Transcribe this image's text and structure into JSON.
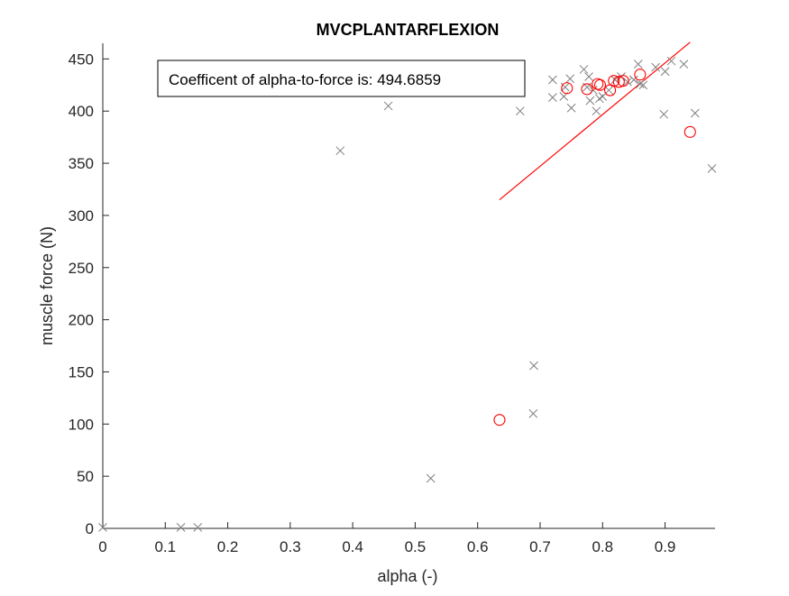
{
  "chart_data": {
    "type": "scatter",
    "title": "MVCPLANTARFLEXION",
    "xlabel": "alpha (-)",
    "ylabel": "muscle force (N)",
    "xlim": [
      0,
      0.98
    ],
    "ylim": [
      0,
      465
    ],
    "xticks": [
      0,
      0.1,
      0.2,
      0.3,
      0.4,
      0.5,
      0.6,
      0.7,
      0.8,
      0.9
    ],
    "yticks": [
      0,
      50,
      100,
      150,
      200,
      250,
      300,
      350,
      400,
      450
    ],
    "grid": false,
    "annotation": "Coefficent of alpha-to-force is: 494.6859",
    "series": [
      {
        "marker": "x",
        "color": "#7f7f7f",
        "points": [
          [
            0.0,
            1
          ],
          [
            0.125,
            1
          ],
          [
            0.152,
            1
          ],
          [
            0.38,
            362
          ],
          [
            0.457,
            405
          ],
          [
            0.525,
            48
          ],
          [
            0.668,
            400
          ],
          [
            0.689,
            110
          ],
          [
            0.69,
            156
          ],
          [
            0.72,
            413
          ],
          [
            0.72,
            430
          ],
          [
            0.738,
            414
          ],
          [
            0.74,
            423
          ],
          [
            0.748,
            431
          ],
          [
            0.75,
            403
          ],
          [
            0.77,
            440
          ],
          [
            0.775,
            423
          ],
          [
            0.778,
            433
          ],
          [
            0.78,
            410
          ],
          [
            0.785,
            420
          ],
          [
            0.79,
            400
          ],
          [
            0.795,
            412
          ],
          [
            0.8,
            414
          ],
          [
            0.81,
            420
          ],
          [
            0.82,
            430
          ],
          [
            0.83,
            433
          ],
          [
            0.84,
            428
          ],
          [
            0.85,
            430
          ],
          [
            0.857,
            445
          ],
          [
            0.86,
            426
          ],
          [
            0.865,
            425
          ],
          [
            0.885,
            442
          ],
          [
            0.898,
            397
          ],
          [
            0.9,
            438
          ],
          [
            0.91,
            448
          ],
          [
            0.93,
            445
          ],
          [
            0.948,
            398
          ],
          [
            0.975,
            345
          ]
        ]
      },
      {
        "marker": "o",
        "color": "#ff0000",
        "points": [
          [
            0.635,
            104
          ],
          [
            0.743,
            422
          ],
          [
            0.775,
            421
          ],
          [
            0.792,
            426
          ],
          [
            0.796,
            425
          ],
          [
            0.812,
            420
          ],
          [
            0.818,
            429
          ],
          [
            0.826,
            428
          ],
          [
            0.833,
            429
          ],
          [
            0.86,
            435
          ],
          [
            0.94,
            380
          ]
        ]
      }
    ],
    "fit_line": {
      "color": "#ff0000",
      "points": [
        [
          0.635,
          315
        ],
        [
          0.94,
          466
        ]
      ]
    }
  }
}
